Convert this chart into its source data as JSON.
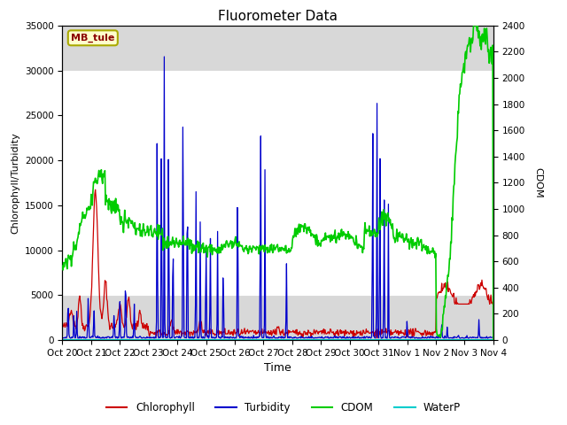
{
  "title": "Fluorometer Data",
  "xlabel": "Time",
  "ylabel_left": "Chlorophyll/Turbidity",
  "ylabel_right": "CDOM",
  "station_label": "MB_tule",
  "ylim_left": [
    0,
    35000
  ],
  "ylim_right": [
    0,
    2400
  ],
  "white_band": [
    5000,
    30000
  ],
  "legend_entries": [
    "Chlorophyll",
    "Turbidity",
    "CDOM",
    "WaterP"
  ],
  "colors": {
    "Chlorophyll": "#cc0000",
    "Turbidity": "#0000cc",
    "CDOM": "#00cc00",
    "WaterP": "#00cccc"
  },
  "ytick_left": [
    0,
    5000,
    10000,
    15000,
    20000,
    25000,
    30000,
    35000
  ],
  "ytick_right": [
    0,
    200,
    400,
    600,
    800,
    1000,
    1200,
    1400,
    1600,
    1800,
    2000,
    2200,
    2400
  ],
  "xtick_labels": [
    "Oct 20",
    "Oct 21",
    "Oct 22",
    "Oct 23",
    "Oct 24",
    "Oct 25",
    "Oct 26",
    "Oct 27",
    "Oct 28",
    "Oct 29",
    "Oct 30",
    "Oct 31",
    "Nov 1",
    "Nov 2",
    "Nov 3",
    "Nov 4"
  ],
  "background_color": "#ffffff",
  "plot_bg_color": "#d8d8d8"
}
